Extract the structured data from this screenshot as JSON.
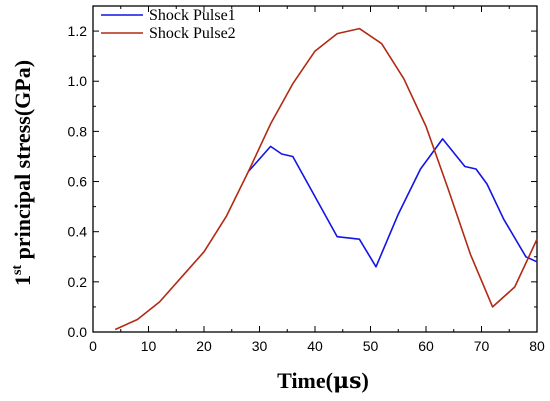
{
  "chart_data": {
    "type": "line",
    "xlabel_main": "Time(",
    "xlabel_unit": "μs",
    "xlabel_end": ")",
    "ylabel_base": "1",
    "ylabel_sup": "st",
    "ylabel_rest": " principal stress(GPa)",
    "xlim": [
      0,
      80
    ],
    "ylim": [
      0.0,
      1.3
    ],
    "x_ticks": [
      0,
      10,
      20,
      30,
      40,
      50,
      60,
      70,
      80
    ],
    "x_tick_labels": [
      "0",
      "10",
      "20",
      "30",
      "40",
      "50",
      "60",
      "70",
      "80"
    ],
    "y_ticks": [
      0.0,
      0.2,
      0.4,
      0.6,
      0.8,
      1.0,
      1.2
    ],
    "y_tick_labels": [
      "0.0",
      "0.2",
      "0.4",
      "0.6",
      "0.8",
      "1.0",
      "1.2"
    ],
    "grid": false,
    "legend_position": "top-left",
    "series": [
      {
        "name": "Shock Pulse1",
        "color": "#1414e6",
        "x": [
          28,
          32,
          34,
          36,
          44,
          48,
          51,
          55,
          59,
          63,
          67,
          69,
          71,
          74,
          78,
          80
        ],
        "y": [
          0.64,
          0.74,
          0.71,
          0.7,
          0.38,
          0.37,
          0.26,
          0.47,
          0.65,
          0.77,
          0.66,
          0.65,
          0.59,
          0.45,
          0.3,
          0.28
        ]
      },
      {
        "name": "Shock Pulse2",
        "color": "#b22a14",
        "x": [
          4,
          8,
          12,
          16,
          20,
          24,
          28,
          32,
          36,
          40,
          44,
          48,
          52,
          56,
          60,
          64,
          68,
          72,
          76,
          80
        ],
        "y": [
          0.01,
          0.05,
          0.12,
          0.22,
          0.32,
          0.46,
          0.64,
          0.83,
          0.99,
          1.12,
          1.19,
          1.21,
          1.15,
          1.01,
          0.82,
          0.57,
          0.31,
          0.1,
          0.18,
          0.37
        ]
      }
    ]
  }
}
